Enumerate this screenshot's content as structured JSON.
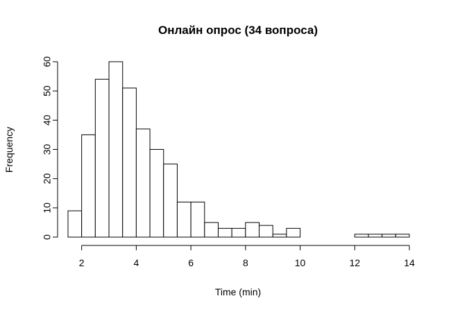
{
  "chart_data": {
    "type": "bar",
    "title": "Онлайн опрос (34 вопроса)",
    "xlabel": "Time (min)",
    "ylabel": "Frequency",
    "xlim": [
      1.5,
      14
    ],
    "ylim": [
      0,
      60
    ],
    "x_ticks": [
      2,
      4,
      6,
      8,
      10,
      12,
      14
    ],
    "y_ticks": [
      0,
      10,
      20,
      30,
      40,
      50,
      60
    ],
    "bin_width": 0.5,
    "bins": [
      {
        "start": 1.5,
        "end": 2.0,
        "value": 9
      },
      {
        "start": 2.0,
        "end": 2.5,
        "value": 35
      },
      {
        "start": 2.5,
        "end": 3.0,
        "value": 54
      },
      {
        "start": 3.0,
        "end": 3.5,
        "value": 60
      },
      {
        "start": 3.5,
        "end": 4.0,
        "value": 51
      },
      {
        "start": 4.0,
        "end": 4.5,
        "value": 37
      },
      {
        "start": 4.5,
        "end": 5.0,
        "value": 30
      },
      {
        "start": 5.0,
        "end": 5.5,
        "value": 25
      },
      {
        "start": 5.5,
        "end": 6.0,
        "value": 12
      },
      {
        "start": 6.0,
        "end": 6.5,
        "value": 12
      },
      {
        "start": 6.5,
        "end": 7.0,
        "value": 5
      },
      {
        "start": 7.0,
        "end": 7.5,
        "value": 3
      },
      {
        "start": 7.5,
        "end": 8.0,
        "value": 3
      },
      {
        "start": 8.0,
        "end": 8.5,
        "value": 5
      },
      {
        "start": 8.5,
        "end": 9.0,
        "value": 4
      },
      {
        "start": 9.0,
        "end": 9.5,
        "value": 1
      },
      {
        "start": 9.5,
        "end": 10.0,
        "value": 3
      },
      {
        "start": 10.0,
        "end": 10.5,
        "value": 0
      },
      {
        "start": 10.5,
        "end": 11.0,
        "value": 0
      },
      {
        "start": 11.0,
        "end": 11.5,
        "value": 0
      },
      {
        "start": 11.5,
        "end": 12.0,
        "value": 0
      },
      {
        "start": 12.0,
        "end": 12.5,
        "value": 1
      },
      {
        "start": 12.5,
        "end": 13.0,
        "value": 1
      },
      {
        "start": 13.0,
        "end": 13.5,
        "value": 1
      },
      {
        "start": 13.5,
        "end": 14.0,
        "value": 1
      }
    ],
    "grid": false,
    "legend": "none",
    "colors": {
      "bar_fill": "#ffffff",
      "bar_stroke": "#000000"
    }
  }
}
